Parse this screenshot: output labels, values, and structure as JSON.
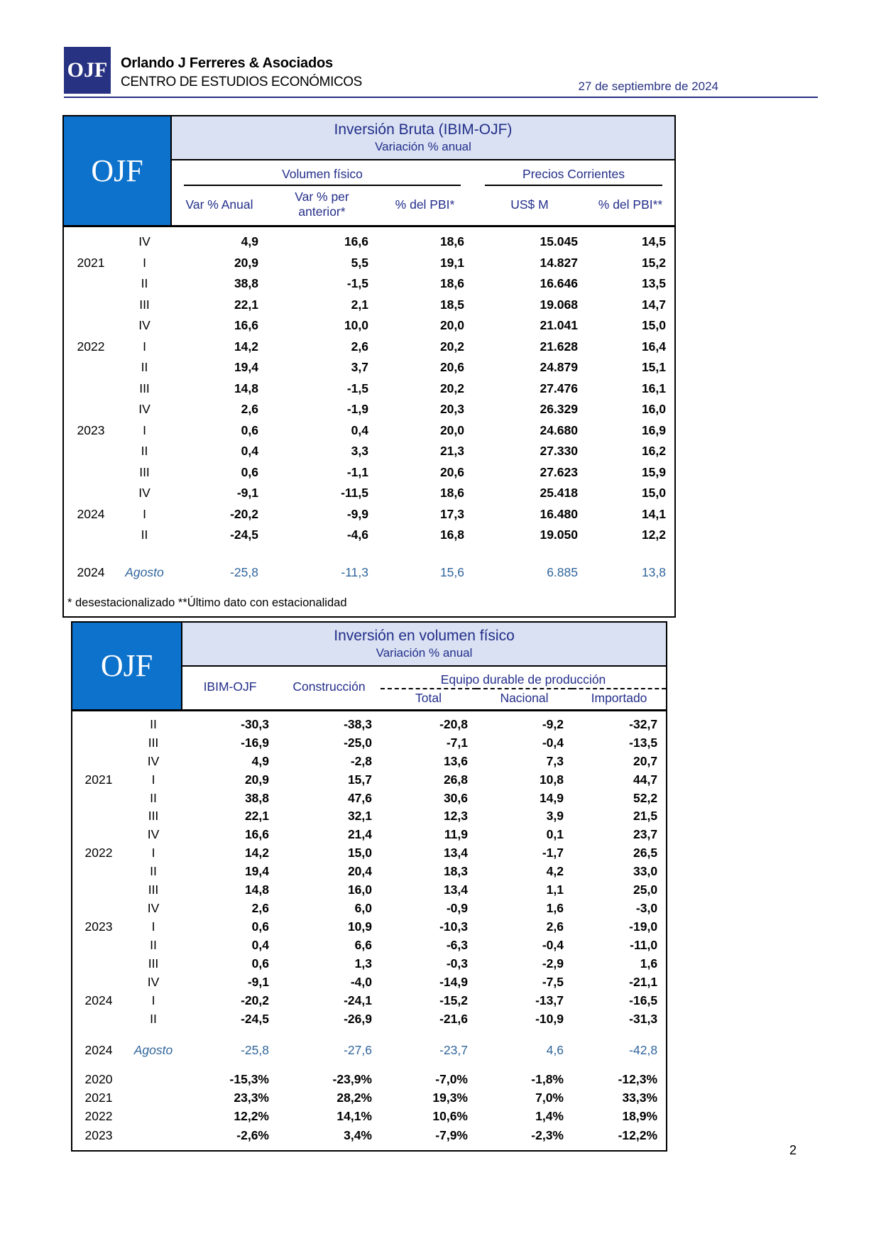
{
  "page": {
    "number": "2"
  },
  "colors": {
    "brand_navy": "#283282",
    "table_logo_blue": "#0d72cc",
    "band_lavender": "#d9e1f2",
    "header_text_navy": "#232e8a",
    "monthly_row_blue": "#30659b"
  },
  "header": {
    "logo_text": "OJF",
    "company": "Orlando J Ferreres & Asociados",
    "center": "CENTRO DE ESTUDIOS ECONÓMICOS",
    "date": "27 de septiembre de 2024"
  },
  "table1": {
    "logo": "OJF",
    "title": "Inversión Bruta (IBIM-OJF)",
    "subtitle": "Variación % anual",
    "group_left": "Volumen físico",
    "group_right": "Precios Corrientes",
    "columns": [
      "Var % Anual",
      "Var % per anterior*",
      "% del PBI*",
      "US$ M",
      "% del PBI**"
    ],
    "footnote": "* desestacionalizado **Último dato con estacionalidad",
    "rows": [
      {
        "year": "",
        "q": "IV",
        "v": [
          "4,9",
          "16,6",
          "18,6",
          "15.045",
          "14,5"
        ]
      },
      {
        "year": "2021",
        "q": "I",
        "v": [
          "20,9",
          "5,5",
          "19,1",
          "14.827",
          "15,2"
        ]
      },
      {
        "year": "",
        "q": "II",
        "v": [
          "38,8",
          "-1,5",
          "18,6",
          "16.646",
          "13,5"
        ]
      },
      {
        "year": "",
        "q": "III",
        "v": [
          "22,1",
          "2,1",
          "18,5",
          "19.068",
          "14,7"
        ]
      },
      {
        "year": "",
        "q": "IV",
        "v": [
          "16,6",
          "10,0",
          "20,0",
          "21.041",
          "15,0"
        ]
      },
      {
        "year": "2022",
        "q": "I",
        "v": [
          "14,2",
          "2,6",
          "20,2",
          "21.628",
          "16,4"
        ]
      },
      {
        "year": "",
        "q": "II",
        "v": [
          "19,4",
          "3,7",
          "20,6",
          "24.879",
          "15,1"
        ]
      },
      {
        "year": "",
        "q": "III",
        "v": [
          "14,8",
          "-1,5",
          "20,2",
          "27.476",
          "16,1"
        ]
      },
      {
        "year": "",
        "q": "IV",
        "v": [
          "2,6",
          "-1,9",
          "20,3",
          "26.329",
          "16,0"
        ]
      },
      {
        "year": "2023",
        "q": "I",
        "v": [
          "0,6",
          "0,4",
          "20,0",
          "24.680",
          "16,9"
        ]
      },
      {
        "year": "",
        "q": "II",
        "v": [
          "0,4",
          "3,3",
          "21,3",
          "27.330",
          "16,2"
        ]
      },
      {
        "year": "",
        "q": "III",
        "v": [
          "0,6",
          "-1,1",
          "20,6",
          "27.623",
          "15,9"
        ]
      },
      {
        "year": "",
        "q": "IV",
        "v": [
          "-9,1",
          "-11,5",
          "18,6",
          "25.418",
          "15,0"
        ]
      },
      {
        "year": "2024",
        "q": "I",
        "v": [
          "-20,2",
          "-9,9",
          "17,3",
          "16.480",
          "14,1"
        ]
      },
      {
        "year": "",
        "q": "II",
        "v": [
          "-24,5",
          "-4,6",
          "16,8",
          "19.050",
          "12,2"
        ]
      },
      {
        "year": "2024",
        "q": "Agosto",
        "type": "monthly",
        "v": [
          "-25,8",
          "-11,3",
          "15,6",
          "6.885",
          "13,8"
        ]
      }
    ]
  },
  "table2": {
    "logo": "OJF",
    "title": "Inversión en volumen físico",
    "subtitle": "Variación % anual",
    "col_ibim": "IBIM-OJF",
    "col_construccion": "Construcción",
    "equip_group": "Equipo durable de producción",
    "equip_cols": [
      "Total",
      "Nacional",
      "Importado"
    ],
    "rows": [
      {
        "year": "",
        "q": "II",
        "v": [
          "-30,3",
          "-38,3",
          "-20,8",
          "-9,2",
          "-32,7"
        ]
      },
      {
        "year": "",
        "q": "III",
        "v": [
          "-16,9",
          "-25,0",
          "-7,1",
          "-0,4",
          "-13,5"
        ]
      },
      {
        "year": "",
        "q": "IV",
        "v": [
          "4,9",
          "-2,8",
          "13,6",
          "7,3",
          "20,7"
        ]
      },
      {
        "year": "2021",
        "q": "I",
        "v": [
          "20,9",
          "15,7",
          "26,8",
          "10,8",
          "44,7"
        ]
      },
      {
        "year": "",
        "q": "II",
        "v": [
          "38,8",
          "47,6",
          "30,6",
          "14,9",
          "52,2"
        ]
      },
      {
        "year": "",
        "q": "III",
        "v": [
          "22,1",
          "32,1",
          "12,3",
          "3,9",
          "21,5"
        ]
      },
      {
        "year": "",
        "q": "IV",
        "v": [
          "16,6",
          "21,4",
          "11,9",
          "0,1",
          "23,7"
        ]
      },
      {
        "year": "2022",
        "q": "I",
        "v": [
          "14,2",
          "15,0",
          "13,4",
          "-1,7",
          "26,5"
        ]
      },
      {
        "year": "",
        "q": "II",
        "v": [
          "19,4",
          "20,4",
          "18,3",
          "4,2",
          "33,0"
        ]
      },
      {
        "year": "",
        "q": "III",
        "v": [
          "14,8",
          "16,0",
          "13,4",
          "1,1",
          "25,0"
        ]
      },
      {
        "year": "",
        "q": "IV",
        "v": [
          "2,6",
          "6,0",
          "-0,9",
          "1,6",
          "-3,0"
        ]
      },
      {
        "year": "2023",
        "q": "I",
        "v": [
          "0,6",
          "10,9",
          "-10,3",
          "2,6",
          "-19,0"
        ]
      },
      {
        "year": "",
        "q": "II",
        "v": [
          "0,4",
          "6,6",
          "-6,3",
          "-0,4",
          "-11,0"
        ]
      },
      {
        "year": "",
        "q": "III",
        "v": [
          "0,6",
          "1,3",
          "-0,3",
          "-2,9",
          "1,6"
        ]
      },
      {
        "year": "",
        "q": "IV",
        "v": [
          "-9,1",
          "-4,0",
          "-14,9",
          "-7,5",
          "-21,1"
        ]
      },
      {
        "year": "2024",
        "q": "I",
        "v": [
          "-20,2",
          "-24,1",
          "-15,2",
          "-13,7",
          "-16,5"
        ]
      },
      {
        "year": "",
        "q": "II",
        "v": [
          "-24,5",
          "-26,9",
          "-21,6",
          "-10,9",
          "-31,3"
        ]
      },
      {
        "year": "2024",
        "q": "Agosto",
        "type": "monthly",
        "v": [
          "-25,8",
          "-27,6",
          "-23,7",
          "4,6",
          "-42,8"
        ]
      },
      {
        "year": "2020",
        "q": "",
        "type": "annual",
        "v": [
          "-15,3%",
          "-23,9%",
          "-7,0%",
          "-1,8%",
          "-12,3%"
        ]
      },
      {
        "year": "2021",
        "q": "",
        "type": "annual",
        "v": [
          "23,3%",
          "28,2%",
          "19,3%",
          "7,0%",
          "33,3%"
        ]
      },
      {
        "year": "2022",
        "q": "",
        "type": "annual",
        "v": [
          "12,2%",
          "14,1%",
          "10,6%",
          "1,4%",
          "18,9%"
        ]
      },
      {
        "year": "2023",
        "q": "",
        "type": "annual last-row",
        "v": [
          "-2,6%",
          "3,4%",
          "-7,9%",
          "-2,3%",
          "-12,2%"
        ]
      }
    ]
  }
}
